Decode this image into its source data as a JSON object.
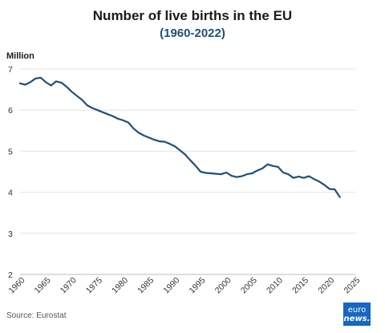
{
  "chart_data": {
    "type": "line",
    "title": "Number of live births in the EU",
    "subtitle": "(1960-2022)",
    "ylabel": "Million",
    "xlabel": "",
    "xlim": [
      1960,
      2025
    ],
    "ylim": [
      2,
      7
    ],
    "x_ticks": [
      1960,
      1965,
      1970,
      1975,
      1980,
      1985,
      1990,
      1995,
      2000,
      2005,
      2010,
      2015,
      2020,
      2025
    ],
    "y_ticks": [
      2,
      3,
      4,
      5,
      6,
      7
    ],
    "grid": true,
    "color": "#1f4f7a",
    "series": [
      {
        "x": [
          1960,
          1961,
          1962,
          1963,
          1964,
          1965,
          1966,
          1967,
          1968,
          1969,
          1970,
          1971,
          1972,
          1973,
          1974,
          1975,
          1976,
          1977,
          1978,
          1979,
          1980,
          1981,
          1982,
          1983,
          1984,
          1985,
          1986,
          1987,
          1988,
          1989,
          1990,
          1991,
          1992,
          1993,
          1994,
          1995,
          1996,
          1997,
          1998,
          1999,
          2000,
          2001,
          2002,
          2003,
          2004,
          2005,
          2006,
          2007,
          2008,
          2009,
          2010,
          2011,
          2012,
          2013,
          2014,
          2015,
          2016,
          2017,
          2018,
          2019,
          2020,
          2021,
          2022
        ],
        "values": [
          6.65,
          6.62,
          6.68,
          6.77,
          6.79,
          6.68,
          6.6,
          6.7,
          6.67,
          6.57,
          6.45,
          6.35,
          6.25,
          6.12,
          6.05,
          6.0,
          5.95,
          5.9,
          5.85,
          5.79,
          5.75,
          5.7,
          5.55,
          5.45,
          5.38,
          5.33,
          5.28,
          5.24,
          5.23,
          5.18,
          5.12,
          5.02,
          4.92,
          4.78,
          4.65,
          4.5,
          4.47,
          4.46,
          4.45,
          4.44,
          4.48,
          4.4,
          4.37,
          4.39,
          4.44,
          4.46,
          4.53,
          4.58,
          4.68,
          4.64,
          4.62,
          4.48,
          4.44,
          4.35,
          4.38,
          4.35,
          4.39,
          4.32,
          4.26,
          4.18,
          4.08,
          4.07,
          3.88
        ]
      }
    ]
  },
  "footer": {
    "source": "Source: Eurostat",
    "logo_line1": "euro",
    "logo_line2": "news."
  }
}
